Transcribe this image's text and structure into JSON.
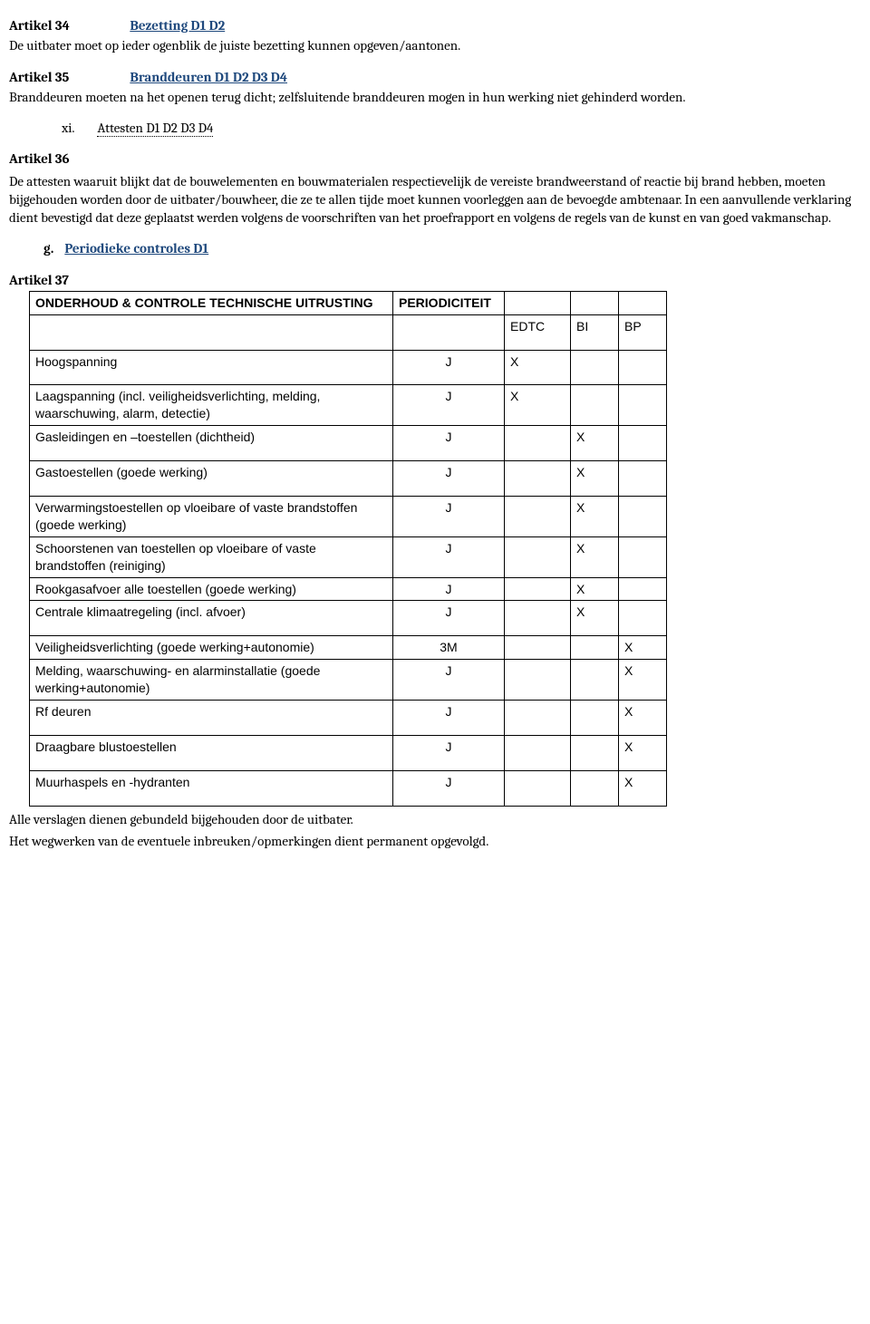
{
  "a34": {
    "num": "Artikel 34",
    "title": "Bezetting D1 D2",
    "body": "De uitbater moet op ieder ogenblik de juiste bezetting kunnen opgeven/aantonen."
  },
  "a35": {
    "num": "Artikel 35",
    "title": "Branddeuren D1 D2 D3 D4",
    "body": "Branddeuren moeten  na het openen terug dicht; zelfsluitende branddeuren mogen in hun werking niet gehinderd worden."
  },
  "xi": {
    "marker": "xi.",
    "title": "Attesten D1 D2 D3 D4"
  },
  "a36": {
    "num": "Artikel 36",
    "body": "De attesten waaruit blijkt dat de bouwelementen en bouwmaterialen respectievelijk de vereiste brandweerstand of reactie bij brand hebben, moeten bijgehouden worden door de uitbater/bouwheer, die ze te allen tijde moet kunnen voorleggen aan de bevoegde ambtenaar. In een aanvullende verklaring dient bevestigd dat deze geplaatst werden volgens de voorschriften van het proefrapport en volgens de regels van de kunst en van goed vakmanschap."
  },
  "g": {
    "marker": "g.",
    "title": "Periodieke controles D1"
  },
  "a37": {
    "num": "Artikel 37"
  },
  "table": {
    "header_desc": "ONDERHOUD & CONTROLE TECHNISCHE UITRUSTING",
    "header_period": "PERIODICITEIT",
    "sub_edtc": "EDTC",
    "sub_bi": "BI",
    "sub_bp": "BP",
    "rows": [
      {
        "desc": "Hoogspanning",
        "period": "J",
        "edtc": "X",
        "bi": "",
        "bp": ""
      },
      {
        "desc": "Laagspanning (incl. veiligheidsverlichting, melding, waarschuwing, alarm, detectie)",
        "period": "J",
        "edtc": "X",
        "bi": "",
        "bp": "",
        "narrow": true
      },
      {
        "desc": "Gasleidingen en –toestellen (dichtheid)",
        "period": "J",
        "edtc": "",
        "bi": "X",
        "bp": ""
      },
      {
        "desc": "Gastoestellen (goede werking)",
        "period": "J",
        "edtc": "",
        "bi": "X",
        "bp": ""
      },
      {
        "desc": "Verwarmingstoestellen op vloeibare of vaste brandstoffen (goede werking)",
        "period": "J",
        "edtc": "",
        "bi": "X",
        "bp": "",
        "narrow": true
      },
      {
        "desc": "Schoorstenen van toestellen op vloeibare of vaste brandstoffen (reiniging)",
        "period": "J",
        "edtc": "",
        "bi": "X",
        "bp": "",
        "narrow": true
      },
      {
        "desc": "Rookgasafvoer alle toestellen (goede werking)",
        "period": "J",
        "edtc": "",
        "bi": "X",
        "bp": "",
        "narrow": true
      },
      {
        "desc": "Centrale klimaatregeling (incl. afvoer)",
        "period": "J",
        "edtc": "",
        "bi": "X",
        "bp": ""
      },
      {
        "desc": "Veiligheidsverlichting (goede werking+autonomie)",
        "period": "3M",
        "edtc": "",
        "bi": "",
        "bp": "X",
        "narrow": true
      },
      {
        "desc": "Melding, waarschuwing- en alarminstallatie (goede werking+autonomie)",
        "period": "J",
        "edtc": "",
        "bi": "",
        "bp": "X",
        "narrow": true
      },
      {
        "desc": "Rf deuren",
        "period": "J",
        "edtc": "",
        "bi": "",
        "bp": "X"
      },
      {
        "desc": "Draagbare blustoestellen",
        "period": "J",
        "edtc": "",
        "bi": "",
        "bp": "X"
      },
      {
        "desc": "Muurhaspels en -hydranten",
        "period": "J",
        "edtc": "",
        "bi": "",
        "bp": "X"
      }
    ]
  },
  "footer": {
    "line1": "Alle verslagen dienen gebundeld bijgehouden door de uitbater.",
    "line2": "Het wegwerken van de eventuele inbreuken/opmerkingen dient permanent opgevolgd."
  }
}
